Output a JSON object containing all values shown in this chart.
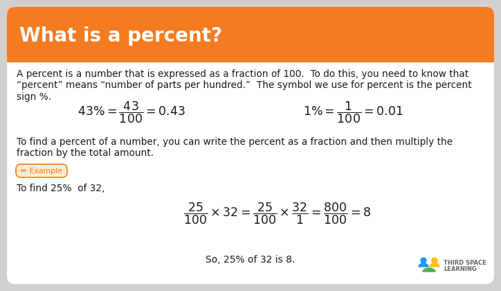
{
  "title": "What is a percent?",
  "title_bg_color": "#F47B20",
  "title_text_color": "#FFFFFF",
  "card_bg_color": "#FFFFFF",
  "outer_bg_color": "#D0D0D0",
  "body_text_color": "#1A1A1A",
  "orange_color": "#F47B20",
  "example_bg_color": "#FDEBD0",
  "example_text_color": "#F47B20",
  "para1_line1": "A percent is a number that is expressed as a fraction of 100.  To do this, you need to know that",
  "para1_line2": "“percent” means “number of parts per hundred.”  The symbol we use for percent is the percent",
  "para1_line3": "sign %.",
  "para2_line1": "To find a percent of a number, you can write the percent as a fraction and then multiply the",
  "para2_line2": "fraction by the total amount.",
  "example_label": "✏ Example",
  "para3": "To find 25%  of 32,",
  "conclusion": "So, 25% of 32 is 8.",
  "logo_text1": "THIRD SPACE",
  "logo_text2": "LEARNING"
}
